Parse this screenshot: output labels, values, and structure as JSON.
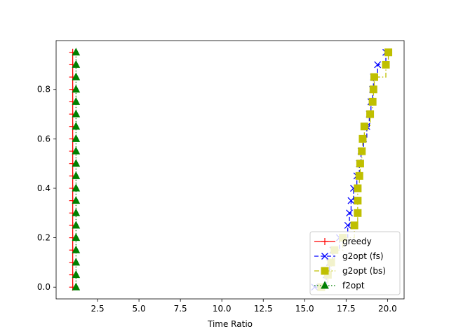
{
  "chart_data": {
    "type": "line",
    "title": "",
    "xlabel": "Time Ratio",
    "ylabel": "",
    "xlim": [
      0.0,
      21.0
    ],
    "ylim": [
      -0.0475,
      0.9975
    ],
    "x_ticks": [
      2.5,
      5.0,
      7.5,
      10.0,
      12.5,
      15.0,
      17.5,
      20.0
    ],
    "x_tick_labels": [
      "2.5",
      "5.0",
      "7.5",
      "10.0",
      "12.5",
      "15.0",
      "17.5",
      "20.0"
    ],
    "y_ticks": [
      0.0,
      0.2,
      0.4,
      0.6,
      0.8
    ],
    "y_tick_labels": [
      "0.0",
      "0.2",
      "0.4",
      "0.6",
      "0.8"
    ],
    "grid": false,
    "legend_position": "lower-right",
    "y": [
      0.0,
      0.05,
      0.1,
      0.15,
      0.2,
      0.25,
      0.3,
      0.35,
      0.4,
      0.45,
      0.5,
      0.55,
      0.6,
      0.65,
      0.7,
      0.75,
      0.8,
      0.85,
      0.9,
      0.95
    ],
    "series": [
      {
        "name": "greedy",
        "color": "#ff0000",
        "marker": "plus",
        "line_style": "solid",
        "x": [
          1.0,
          1.0,
          1.0,
          1.0,
          1.0,
          1.0,
          1.0,
          1.0,
          1.0,
          1.0,
          1.0,
          1.0,
          1.0,
          1.0,
          1.0,
          1.0,
          1.0,
          1.0,
          1.0,
          1.0
        ]
      },
      {
        "name": "g2opt (fs)",
        "color": "#0000ff",
        "marker": "x",
        "line_style": "dashed",
        "x": [
          15.6,
          16.3,
          16.5,
          16.7,
          17.1,
          17.6,
          17.7,
          17.8,
          17.95,
          18.15,
          18.3,
          18.4,
          18.55,
          18.75,
          18.9,
          19.0,
          19.1,
          19.15,
          19.4,
          19.9
        ]
      },
      {
        "name": "g2opt (bs)",
        "color": "#bfbf00",
        "marker": "square",
        "line_style": "dashdot",
        "x": [
          16.0,
          16.4,
          16.6,
          16.8,
          17.3,
          18.0,
          18.2,
          18.2,
          18.2,
          18.3,
          18.35,
          18.45,
          18.5,
          18.6,
          18.95,
          19.1,
          19.15,
          19.2,
          19.9,
          20.05
        ]
      },
      {
        "name": "f2opt",
        "color": "#008000",
        "marker": "triangle",
        "line_style": "dotted",
        "x": [
          1.2,
          1.2,
          1.2,
          1.2,
          1.2,
          1.2,
          1.2,
          1.2,
          1.2,
          1.2,
          1.2,
          1.2,
          1.2,
          1.2,
          1.2,
          1.2,
          1.2,
          1.2,
          1.2,
          1.2
        ]
      }
    ]
  }
}
